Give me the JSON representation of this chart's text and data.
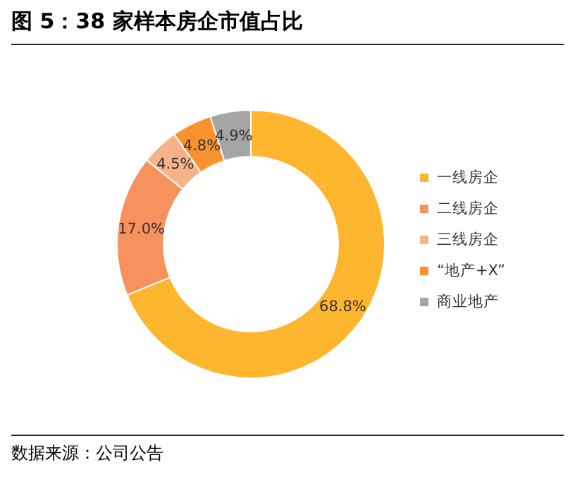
{
  "chart_data": {
    "type": "donut",
    "title": "图 5：38 家样本房企市值占比",
    "categories": [
      "一线房企",
      "二线房企",
      "三线房企",
      "“地产+X”",
      "商业地产"
    ],
    "values": [
      68.8,
      17.0,
      4.5,
      4.8,
      4.9
    ],
    "value_labels": [
      "68.8%",
      "17.0%",
      "4.5%",
      "4.8%",
      "4.9%"
    ],
    "colors": [
      "#ffb62f",
      "#f7925f",
      "#f8b28a",
      "#f7922f",
      "#a5a5a5"
    ],
    "legend": "right",
    "annotations": [
      "数据来源：公司公告"
    ]
  }
}
